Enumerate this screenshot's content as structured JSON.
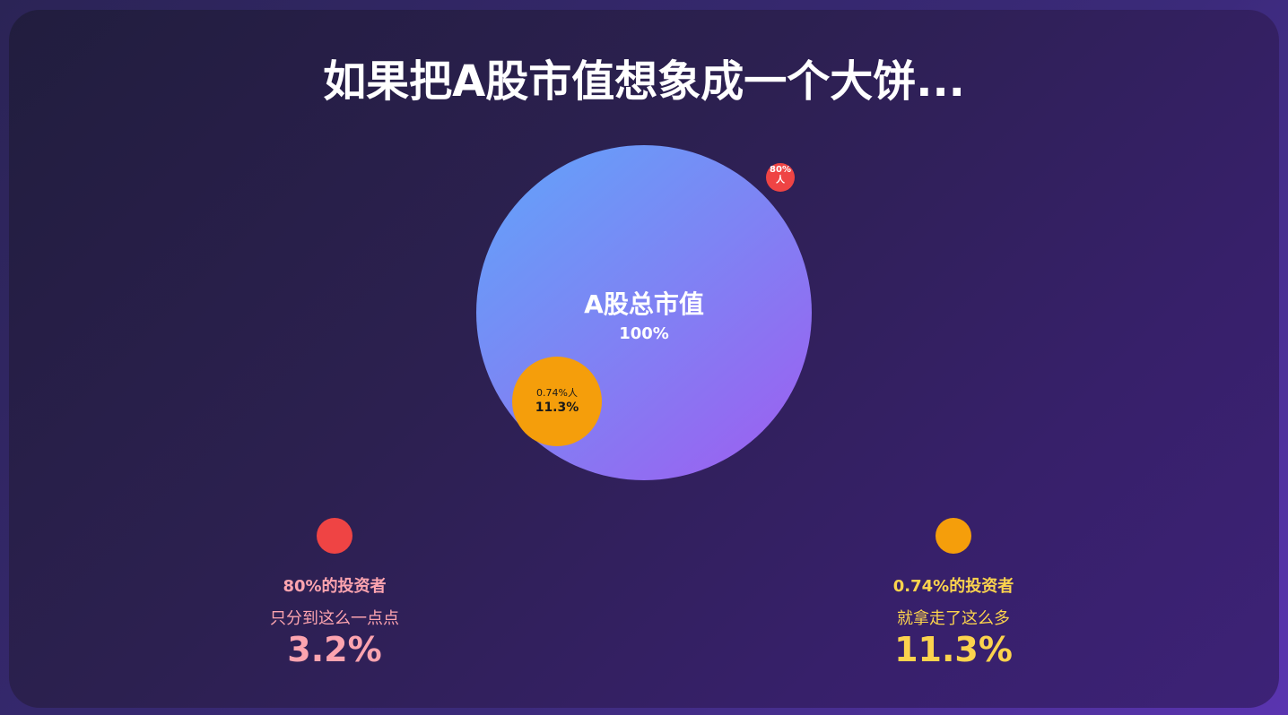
{
  "title": "如果把A股市值想象成一个大饼...",
  "pie": {
    "total_label": "A股总市值",
    "total_value": "100%",
    "small_circle_top": "0.74%人",
    "small_circle_value": "11.3%",
    "tiny_circle_text": "80%人"
  },
  "stats": {
    "left": {
      "heading": "80%的投资者",
      "subtext": "只分到这么一点点",
      "value": "3.2%"
    },
    "right": {
      "heading": "0.74%的投资者",
      "subtext": "就拿走了这么多",
      "value": "11.3%"
    }
  },
  "colors": {
    "big_circle_start": "#60a5fa",
    "big_circle_end": "#9f5cf0",
    "orange": "#f59e0b",
    "red": "#ef4444",
    "left_text": "#fda4af",
    "right_text": "#fcd34d"
  }
}
